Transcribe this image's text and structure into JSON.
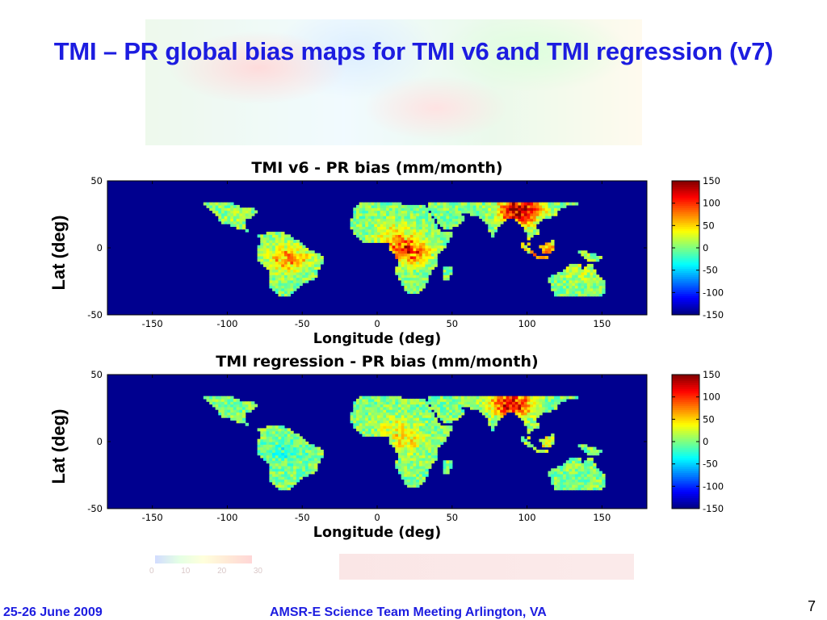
{
  "slide": {
    "title": "TMI – PR global bias maps for TMI v6 and TMI regression (v7)",
    "footer_date": "25-26 June 2009",
    "footer_meeting": "AMSR-E Science Team Meeting  Arlington, VA",
    "page_number": "7",
    "faded_legend_ticks": [
      "0",
      "10",
      "20",
      "30"
    ]
  },
  "colors": {
    "title": "#1c1ce0",
    "ocean": "#00008f",
    "land_base": "#33ccb2"
  },
  "chart_data": [
    {
      "type": "heatmap",
      "title": "TMI v6 - PR bias (mm/month)",
      "xlabel": "Longitude (deg)",
      "ylabel": "Lat (deg)",
      "xlim": [
        -180,
        180
      ],
      "ylim": [
        -50,
        50
      ],
      "xticks": [
        -150,
        -100,
        -50,
        0,
        50,
        100,
        150
      ],
      "yticks": [
        -50,
        0,
        50
      ],
      "data_lat_range": [
        -36,
        36
      ],
      "colorbar": {
        "min": -150,
        "max": 150,
        "ticks": [
          150,
          100,
          50,
          0,
          -50,
          -100,
          -150
        ],
        "colormap": "jet"
      },
      "features": [
        {
          "region": "central Africa",
          "lon": 20,
          "lat": -2,
          "bias": 110
        },
        {
          "region": "Amazon",
          "lon": -60,
          "lat": -8,
          "bias": 70
        },
        {
          "region": "Himalaya / SE Asia",
          "lon": 95,
          "lat": 28,
          "bias": 150
        },
        {
          "region": "Maritime continent",
          "lon": 110,
          "lat": -2,
          "bias": 70
        },
        {
          "region": "northern Australia",
          "lon": 135,
          "lat": -15,
          "bias": 20
        },
        {
          "region": "Sahel",
          "lon": 10,
          "lat": 12,
          "bias": 30
        },
        {
          "region": "Mexico / Central America",
          "lon": -95,
          "lat": 20,
          "bias": 10
        }
      ]
    },
    {
      "type": "heatmap",
      "title": "TMI regression - PR bias (mm/month)",
      "xlabel": "Longitude (deg)",
      "ylabel": "Lat (deg)",
      "xlim": [
        -180,
        180
      ],
      "ylim": [
        -50,
        50
      ],
      "xticks": [
        -150,
        -100,
        -50,
        0,
        50,
        100,
        150
      ],
      "yticks": [
        -50,
        0,
        50
      ],
      "data_lat_range": [
        -36,
        36
      ],
      "colorbar": {
        "min": -150,
        "max": 150,
        "ticks": [
          150,
          100,
          50,
          0,
          -50,
          -100,
          -150
        ],
        "colormap": "jet"
      },
      "features": [
        {
          "region": "central Africa",
          "lon": 20,
          "lat": 2,
          "bias": 40
        },
        {
          "region": "Amazon",
          "lon": -62,
          "lat": -8,
          "bias": -20
        },
        {
          "region": "Himalaya / SE Asia",
          "lon": 90,
          "lat": 28,
          "bias": 120
        },
        {
          "region": "Maritime continent",
          "lon": 110,
          "lat": 0,
          "bias": 30
        },
        {
          "region": "Sahel",
          "lon": 10,
          "lat": 12,
          "bias": 20
        }
      ]
    }
  ]
}
